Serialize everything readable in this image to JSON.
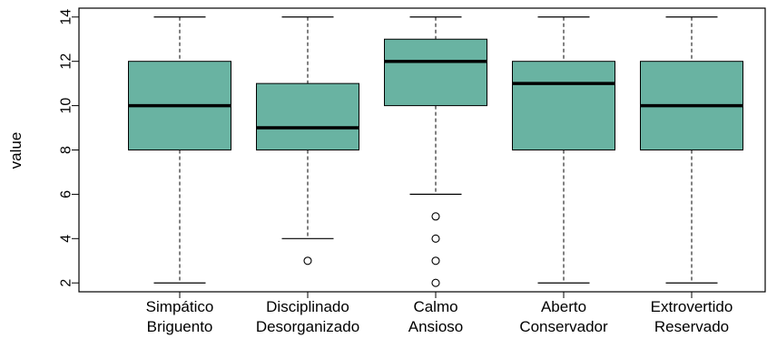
{
  "chart_data": {
    "type": "boxplot",
    "title": "",
    "xlabel": "",
    "ylabel": "value",
    "ylim": [
      1.6,
      14.4
    ],
    "yticks": [
      2,
      4,
      6,
      8,
      10,
      12,
      14
    ],
    "grid": false,
    "box_color": "#69b3a2",
    "categories": [
      [
        "Simpático",
        "Briguento"
      ],
      [
        "Disciplinado",
        "Desorganizado"
      ],
      [
        "Calmo",
        "Ansioso"
      ],
      [
        "Aberto",
        "Conservador"
      ],
      [
        "Extrovertido",
        "Reservado"
      ]
    ],
    "boxes": [
      {
        "whisker_low": 2,
        "q1": 8,
        "median": 10,
        "q3": 12,
        "whisker_high": 14,
        "outliers": []
      },
      {
        "whisker_low": 4,
        "q1": 8,
        "median": 9,
        "q3": 11,
        "whisker_high": 14,
        "outliers": [
          3
        ]
      },
      {
        "whisker_low": 6,
        "q1": 10,
        "median": 12,
        "q3": 13,
        "whisker_high": 14,
        "outliers": [
          2,
          3,
          4,
          5
        ]
      },
      {
        "whisker_low": 2,
        "q1": 8,
        "median": 11,
        "q3": 12,
        "whisker_high": 14,
        "outliers": []
      },
      {
        "whisker_low": 2,
        "q1": 8,
        "median": 10,
        "q3": 12,
        "whisker_high": 14,
        "outliers": []
      }
    ]
  }
}
